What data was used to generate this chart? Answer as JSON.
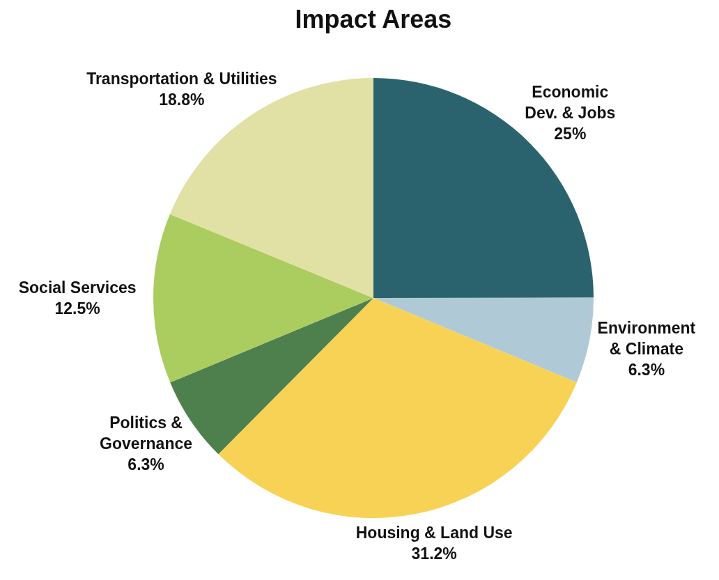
{
  "chart_data": {
    "type": "pie",
    "title": "Impact Areas",
    "categories": [
      "Economic Dev. & Jobs",
      "Environment & Climate",
      "Housing & Land Use",
      "Politics & Governance",
      "Social Services",
      "Transportation & Utilities"
    ],
    "values": [
      25,
      6.3,
      31.2,
      6.3,
      12.5,
      18.8
    ],
    "value_labels": [
      "25%",
      "6.3%",
      "31.2%",
      "6.3%",
      "12.5%",
      "18.8%"
    ],
    "colors": [
      "#2a636e",
      "#afcad6",
      "#f8d254",
      "#4e804d",
      "#abcc5f",
      "#e1e0a5"
    ]
  }
}
